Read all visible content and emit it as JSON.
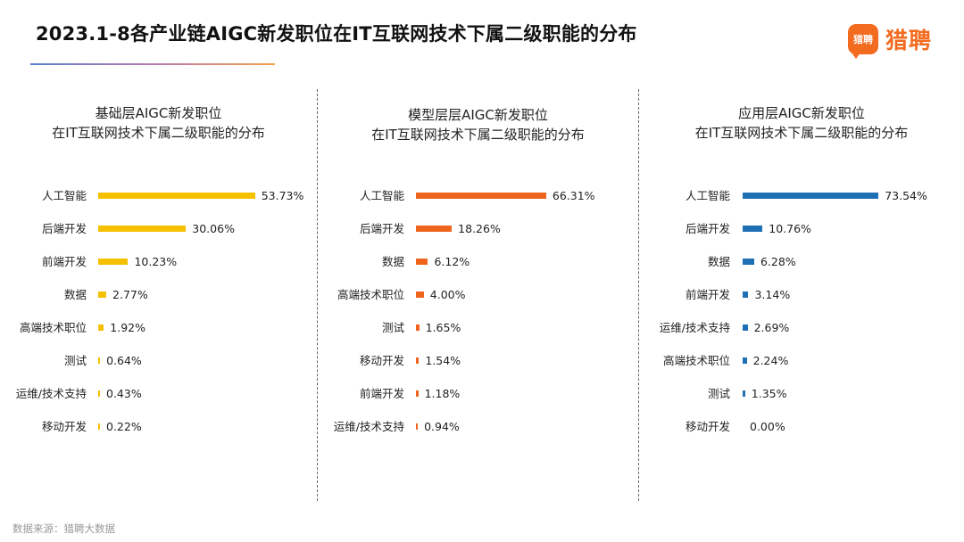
{
  "header": {
    "title": "2023.1-8各产业链AIGC新发职位在IT互联网技术下属二级职能的分布",
    "logo_badge": "猎聘",
    "logo_text": "猎聘"
  },
  "source": "数据来源：猎聘大数据",
  "chart_data": [
    {
      "type": "bar",
      "orientation": "horizontal",
      "title_lines": [
        "基础层AIGC新发职位",
        "在IT互联网技术下属二级职能的分布"
      ],
      "color": "#f5c000",
      "categories": [
        "人工智能",
        "后端开发",
        "前端开发",
        "数据",
        "高端技术职位",
        "测试",
        "运维/技术支持",
        "移动开发"
      ],
      "values": [
        53.73,
        30.06,
        10.23,
        2.77,
        1.92,
        0.64,
        0.43,
        0.22
      ],
      "value_labels": [
        "53.73%",
        "30.06%",
        "10.23%",
        "2.77%",
        "1.92%",
        "0.64%",
        "0.43%",
        "0.22%"
      ],
      "unit": "%"
    },
    {
      "type": "bar",
      "orientation": "horizontal",
      "title_lines": [
        "模型层层AIGC新发职位",
        "在IT互联网技术下属二级职能的分布"
      ],
      "color": "#f0651d",
      "categories": [
        "人工智能",
        "后端开发",
        "数据",
        "高端技术职位",
        "测试",
        "移动开发",
        "前端开发",
        "运维/技术支持"
      ],
      "values": [
        66.31,
        18.26,
        6.12,
        4.0,
        1.65,
        1.54,
        1.18,
        0.94
      ],
      "value_labels": [
        "66.31%",
        "18.26%",
        "6.12%",
        "4.00%",
        "1.65%",
        "1.54%",
        "1.18%",
        "0.94%"
      ],
      "unit": "%"
    },
    {
      "type": "bar",
      "orientation": "horizontal",
      "title_lines": [
        "应用层AIGC新发职位",
        "在IT互联网技术下属二级职能的分布"
      ],
      "color": "#1f6fb5",
      "categories": [
        "人工智能",
        "后端开发",
        "数据",
        "前端开发",
        "运维/技术支持",
        "高端技术职位",
        "测试",
        "移动开发"
      ],
      "values": [
        73.54,
        10.76,
        6.28,
        3.14,
        2.69,
        2.24,
        1.35,
        0.0
      ],
      "value_labels": [
        "73.54%",
        "10.76%",
        "6.28%",
        "3.14%",
        "2.69%",
        "2.24%",
        "1.35%",
        "0.00%"
      ],
      "unit": "%"
    }
  ]
}
